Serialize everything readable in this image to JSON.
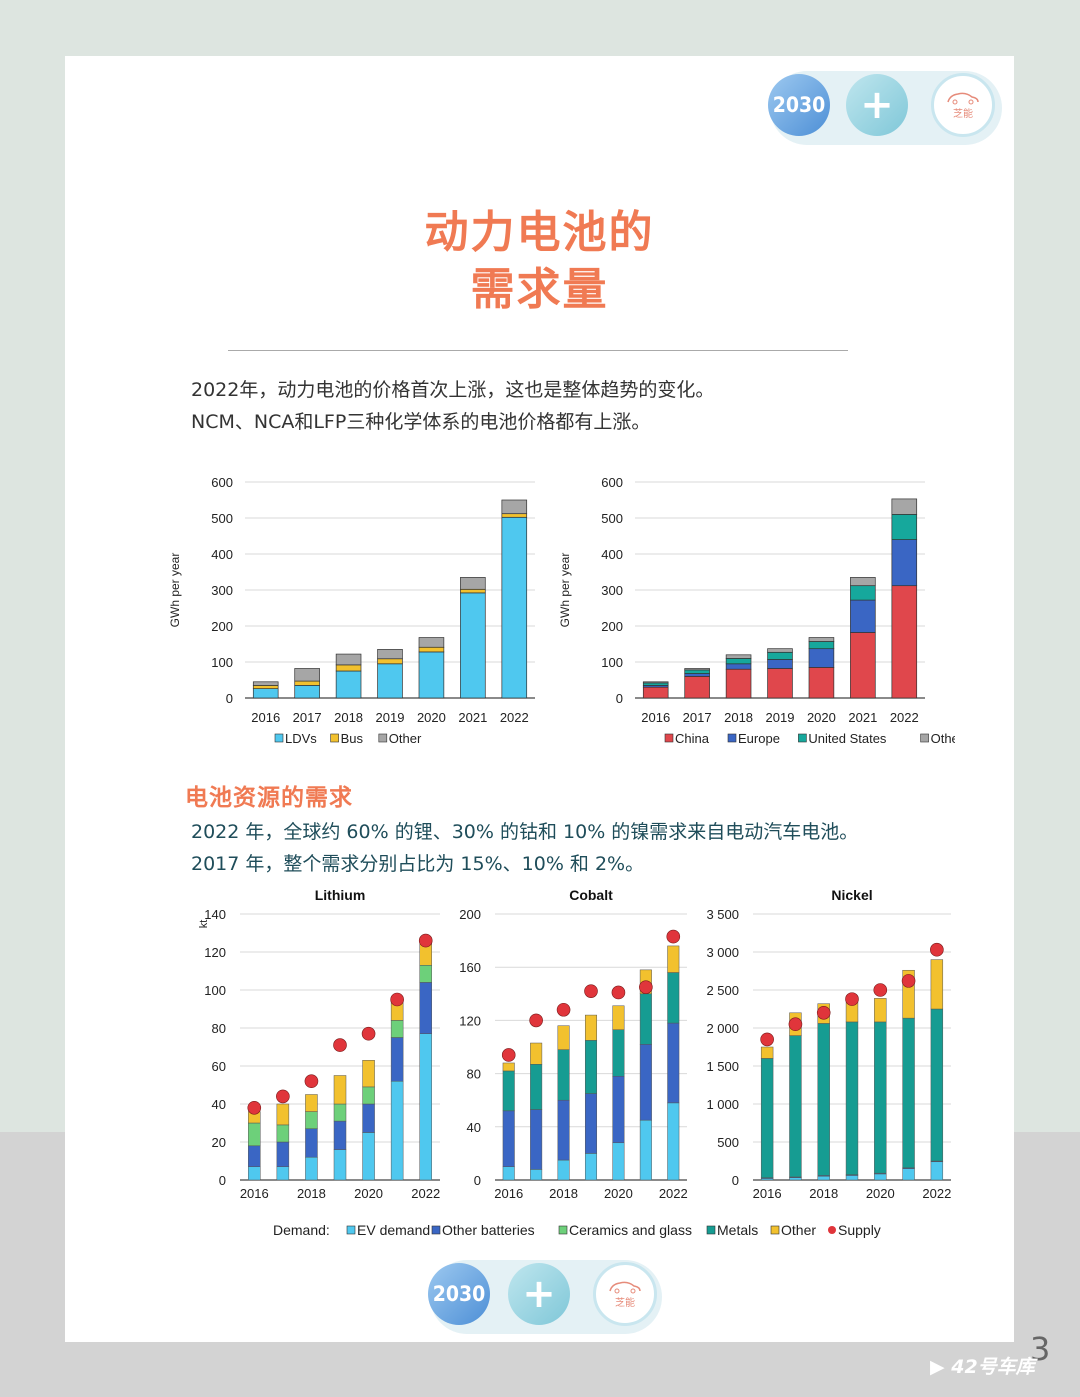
{
  "header": {
    "badge_text": "2030",
    "car_logo_text": "芝能"
  },
  "title": {
    "line1": "动力电池的",
    "line2": "需求量"
  },
  "intro": {
    "line1": "2022年，动力电池的价格首次上涨，这也是整体趋势的变化。",
    "line2": "NCM、NCA和LFP三种化学体系的电池价格都有上涨。"
  },
  "section": {
    "heading": "电池资源的需求",
    "line1": "2022 年，全球约 60% 的锂、30% 的钴和 10% 的镍需求来自电动汽车电池。",
    "line2": "2017 年，整个需求分别占比为 15%、10% 和 2%。"
  },
  "colors": {
    "ldv": "#4fc8ef",
    "bus": "#f2c12e",
    "other_gray": "#a6a6a6",
    "china": "#e0474c",
    "europe": "#3a66c4",
    "united_states": "#16a89c",
    "ev": "#4fc8ef",
    "other_batteries": "#3a66c4",
    "ceramics": "#6dd07a",
    "metals": "#169c92",
    "other_yellow": "#f2c12e",
    "supply": "#e0353b"
  },
  "chart_data": [
    {
      "type": "bar",
      "stacked": true,
      "ylabel": "GWh per year",
      "ylim": [
        0,
        600
      ],
      "yticks": [
        0,
        100,
        200,
        300,
        400,
        500,
        600
      ],
      "categories": [
        "2016",
        "2017",
        "2018",
        "2019",
        "2020",
        "2021",
        "2022"
      ],
      "series": [
        {
          "name": "LDVs",
          "color": "#4fc8ef",
          "values": [
            26,
            35,
            75,
            95,
            128,
            292,
            502
          ]
        },
        {
          "name": "Bus",
          "color": "#f2c12e",
          "values": [
            9,
            12,
            17,
            14,
            13,
            10,
            10
          ]
        },
        {
          "name": "Other",
          "color": "#a6a6a6",
          "values": [
            10,
            35,
            30,
            26,
            27,
            33,
            38
          ]
        }
      ],
      "legend_position": "bottom",
      "grid": true
    },
    {
      "type": "bar",
      "stacked": true,
      "ylabel": "GWh per year",
      "ylim": [
        0,
        600
      ],
      "yticks": [
        0,
        100,
        200,
        300,
        400,
        500,
        600
      ],
      "categories": [
        "2016",
        "2017",
        "2018",
        "2019",
        "2020",
        "2021",
        "2022"
      ],
      "series": [
        {
          "name": "China",
          "color": "#e0474c",
          "values": [
            30,
            60,
            80,
            82,
            85,
            182,
            312
          ]
        },
        {
          "name": "Europe",
          "color": "#3a66c4",
          "values": [
            5,
            8,
            15,
            25,
            52,
            90,
            128
          ]
        },
        {
          "name": "United States",
          "color": "#16a89c",
          "values": [
            7,
            10,
            15,
            20,
            20,
            40,
            70
          ]
        },
        {
          "name": "Other",
          "color": "#a6a6a6",
          "values": [
            3,
            4,
            10,
            10,
            11,
            23,
            43
          ]
        }
      ],
      "legend_position": "bottom",
      "grid": true
    },
    {
      "type": "bar",
      "stacked": true,
      "title": "Lithium",
      "ylabel": "kt",
      "ylim": [
        0,
        140
      ],
      "yticks": [
        0,
        20,
        40,
        60,
        80,
        100,
        120,
        140
      ],
      "x": [
        "2016",
        "2017",
        "2018",
        "2019",
        "2020",
        "2021",
        "2022"
      ],
      "xtick_labels": [
        "2016",
        "2018",
        "2020",
        "2022"
      ],
      "series": [
        {
          "name": "EV demand",
          "color": "#4fc8ef",
          "values": [
            7,
            7,
            12,
            16,
            25,
            52,
            77
          ]
        },
        {
          "name": "Other batteries",
          "color": "#3a66c4",
          "values": [
            11,
            13,
            15,
            15,
            15,
            23,
            27
          ]
        },
        {
          "name": "Ceramics and glass",
          "color": "#6dd07a",
          "values": [
            12,
            9,
            9,
            9,
            9,
            9,
            9
          ]
        },
        {
          "name": "Metals",
          "color": "#169c92",
          "values": [
            0,
            0,
            0,
            0,
            0,
            0,
            0
          ]
        },
        {
          "name": "Other",
          "color": "#f2c12e",
          "values": [
            6,
            11,
            9,
            15,
            14,
            10,
            13
          ]
        }
      ],
      "supply": {
        "name": "Supply",
        "color": "#e0353b",
        "values": [
          38,
          44,
          52,
          71,
          77,
          95,
          126
        ]
      },
      "grid": true
    },
    {
      "type": "bar",
      "stacked": true,
      "title": "Cobalt",
      "ylim": [
        0,
        200
      ],
      "yticks": [
        0,
        40,
        80,
        120,
        160,
        200
      ],
      "x": [
        "2016",
        "2017",
        "2018",
        "2019",
        "2020",
        "2021",
        "2022"
      ],
      "xtick_labels": [
        "2016",
        "2018",
        "2020",
        "2022"
      ],
      "series": [
        {
          "name": "EV demand",
          "color": "#4fc8ef",
          "values": [
            10,
            8,
            15,
            20,
            28,
            45,
            58
          ]
        },
        {
          "name": "Other batteries",
          "color": "#3a66c4",
          "values": [
            42,
            45,
            45,
            45,
            50,
            57,
            60
          ]
        },
        {
          "name": "Ceramics and glass",
          "color": "#6dd07a",
          "values": [
            0,
            0,
            0,
            0,
            0,
            0,
            0
          ]
        },
        {
          "name": "Metals",
          "color": "#169c92",
          "values": [
            30,
            34,
            38,
            40,
            35,
            38,
            38
          ]
        },
        {
          "name": "Other",
          "color": "#f2c12e",
          "values": [
            6,
            16,
            18,
            19,
            18,
            18,
            20
          ]
        }
      ],
      "supply": {
        "name": "Supply",
        "color": "#e0353b",
        "values": [
          94,
          120,
          128,
          142,
          141,
          145,
          183
        ]
      },
      "grid": true
    },
    {
      "type": "bar",
      "stacked": true,
      "title": "Nickel",
      "ylim": [
        0,
        3500
      ],
      "yticks": [
        0,
        500,
        1000,
        1500,
        2000,
        2500,
        3000,
        3500
      ],
      "ytick_labels": [
        "0",
        "500",
        "1 000",
        "1 500",
        "2 000",
        "2 500",
        "3 000",
        "3 500"
      ],
      "x": [
        "2016",
        "2017",
        "2018",
        "2019",
        "2020",
        "2021",
        "2022"
      ],
      "xtick_labels": [
        "2016",
        "2018",
        "2020",
        "2022"
      ],
      "series": [
        {
          "name": "EV demand",
          "color": "#4fc8ef",
          "values": [
            20,
            30,
            50,
            60,
            80,
            150,
            240
          ]
        },
        {
          "name": "Other batteries",
          "color": "#3a66c4",
          "values": [
            10,
            10,
            10,
            10,
            10,
            10,
            10
          ]
        },
        {
          "name": "Ceramics and glass",
          "color": "#6dd07a",
          "values": [
            0,
            0,
            0,
            0,
            0,
            0,
            0
          ]
        },
        {
          "name": "Metals",
          "color": "#169c92",
          "values": [
            1570,
            1860,
            2000,
            2010,
            1990,
            1970,
            2000
          ]
        },
        {
          "name": "Other",
          "color": "#f2c12e",
          "values": [
            150,
            300,
            260,
            260,
            310,
            630,
            650
          ]
        }
      ],
      "supply": {
        "name": "Supply",
        "color": "#e0353b",
        "values": [
          1850,
          2050,
          2200,
          2380,
          2500,
          2620,
          3030
        ]
      },
      "grid": true
    }
  ],
  "legends": {
    "chart1": [
      "LDVs",
      "Bus",
      "Other"
    ],
    "chart2": [
      "China",
      "Europe",
      "United States",
      "Other"
    ],
    "bottom_prefix": "Demand:",
    "bottom": [
      "EV demand",
      "Other batteries",
      "Ceramics and glass",
      "Metals",
      "Other",
      "Supply"
    ]
  },
  "page_number": "3",
  "watermark": "42号车库"
}
